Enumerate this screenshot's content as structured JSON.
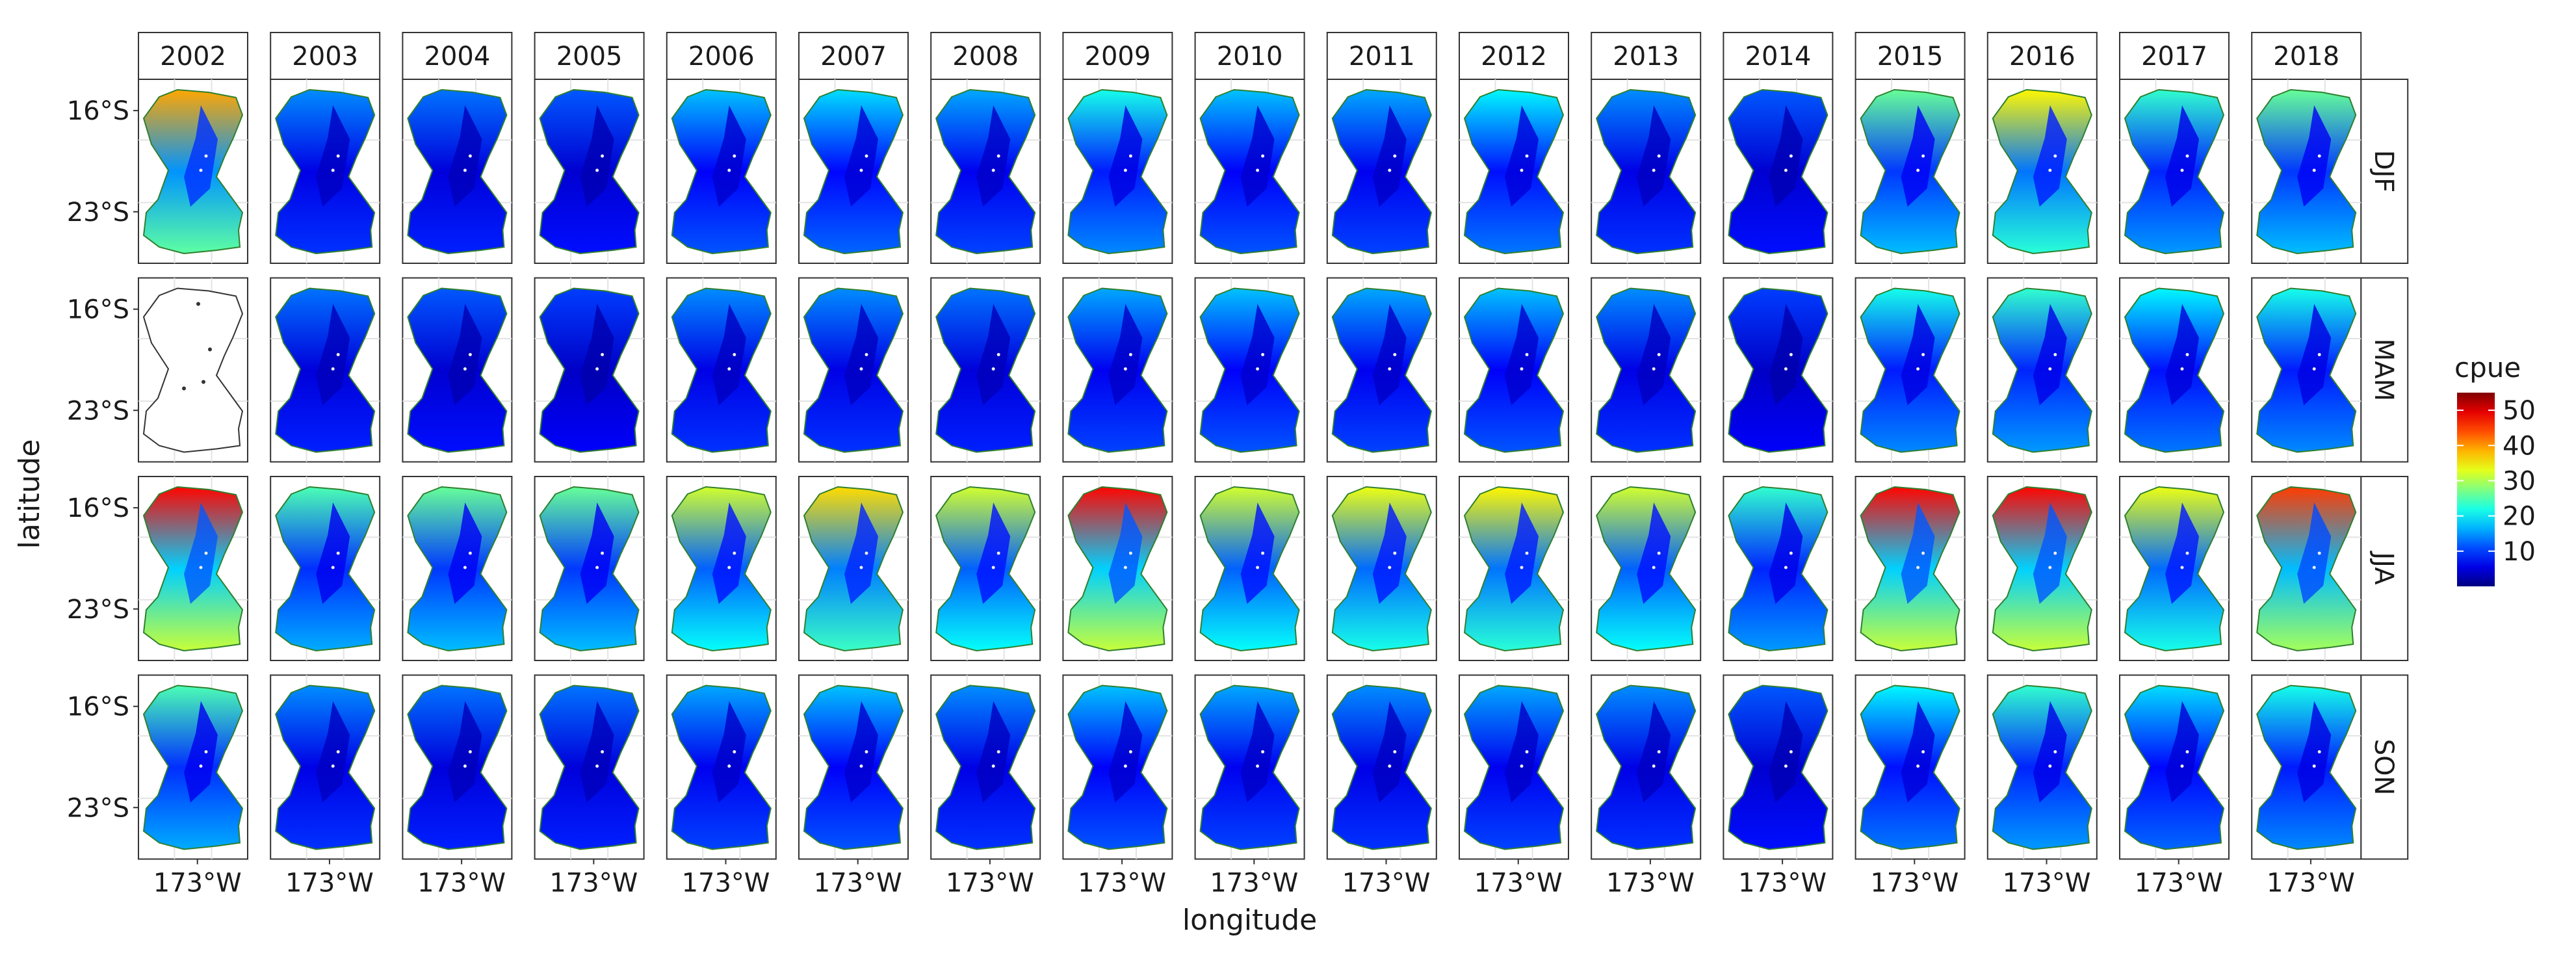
{
  "chart_data": {
    "type": "heatmap",
    "subtype": "faceted-map-grid",
    "xlabel": "longitude",
    "ylabel": "latitude",
    "x_tick_labels": [
      "173°W"
    ],
    "y_tick_labels": [
      "16°S",
      "23°S"
    ],
    "columns": [
      "2002",
      "2003",
      "2004",
      "2005",
      "2006",
      "2007",
      "2008",
      "2009",
      "2010",
      "2011",
      "2012",
      "2013",
      "2014",
      "2015",
      "2016",
      "2017",
      "2018"
    ],
    "rows": [
      "DJF",
      "MAM",
      "JJA",
      "SON"
    ],
    "colorbar": {
      "title": "cpue",
      "range": [
        0,
        55
      ],
      "ticks": [
        10,
        20,
        30,
        40,
        50
      ],
      "colormap": "jet"
    },
    "mean_cpue": [
      [
        27,
        10,
        9,
        8,
        12,
        13,
        11,
        15,
        12,
        11,
        14,
        10,
        8,
        18,
        24,
        16,
        18
      ],
      [
        null,
        9,
        8,
        7,
        10,
        10,
        9,
        11,
        12,
        11,
        12,
        10,
        7,
        15,
        16,
        14,
        15
      ],
      [
        33,
        17,
        18,
        18,
        22,
        25,
        22,
        33,
        22,
        23,
        24,
        22,
        16,
        33,
        33,
        23,
        31
      ],
      [
        17,
        10,
        9,
        9,
        11,
        12,
        10,
        12,
        11,
        10,
        11,
        10,
        8,
        14,
        16,
        13,
        15
      ]
    ],
    "grid_on": true,
    "legend_position": "right"
  }
}
